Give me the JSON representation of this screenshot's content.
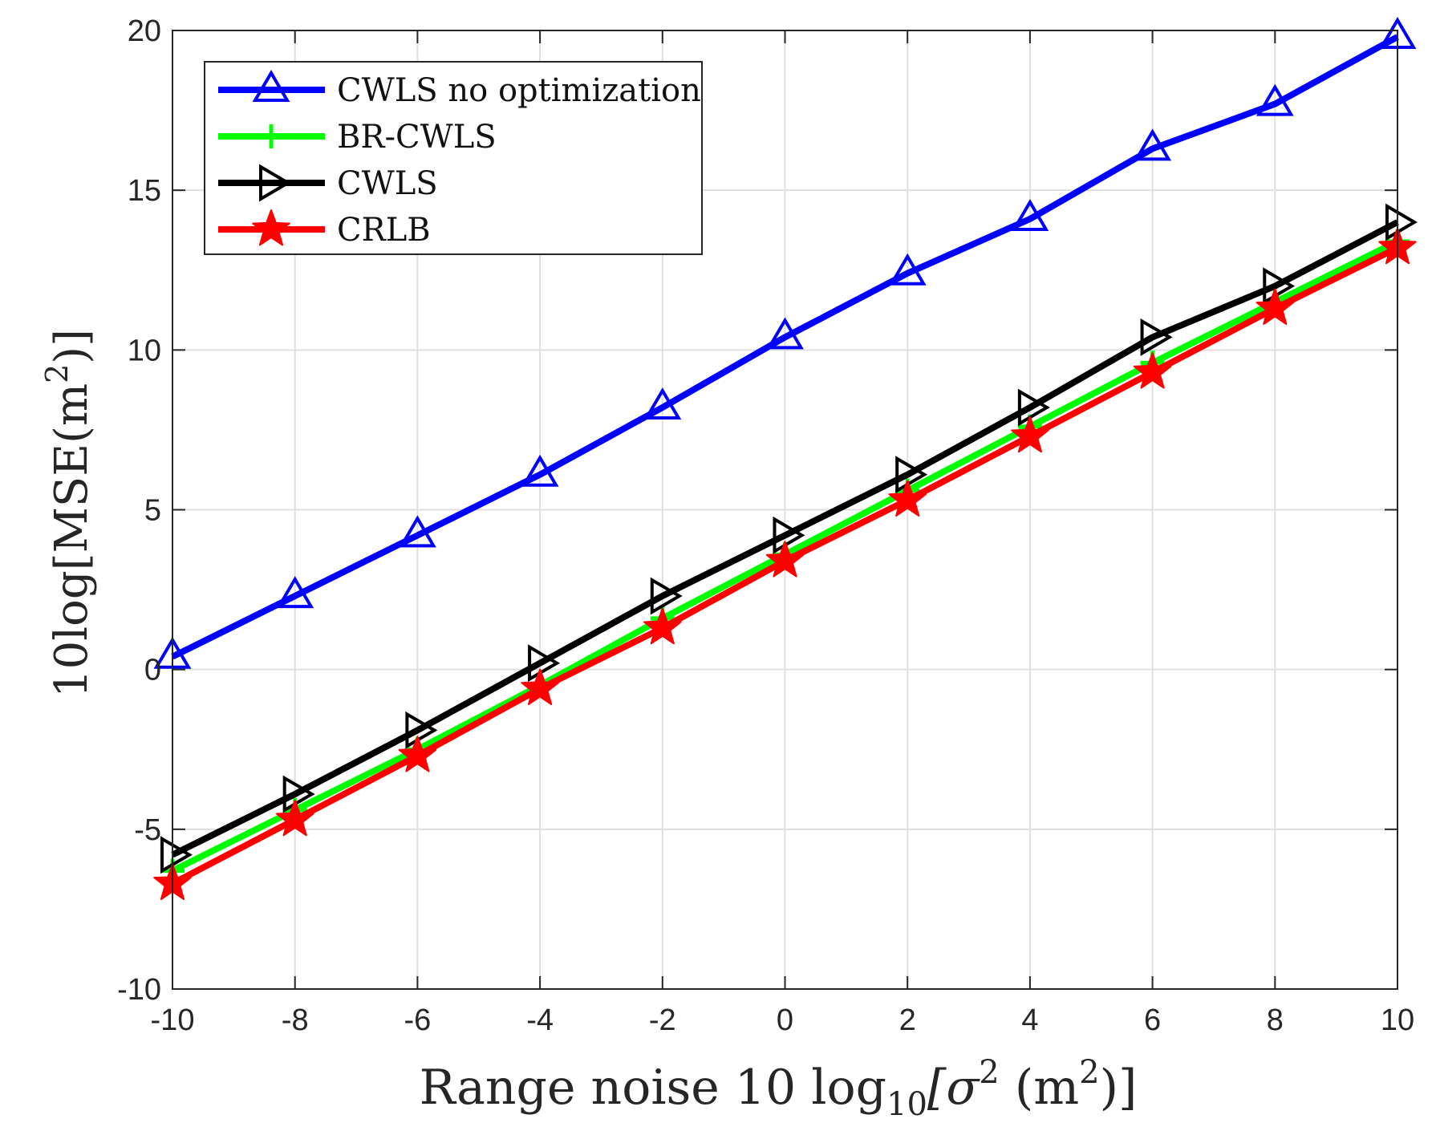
{
  "chart_data": {
    "type": "line",
    "title": "",
    "xlabel": {
      "prefix": "Range noise 10 log",
      "sub": "10",
      "mid": "[σ",
      "sup1": "2",
      "mid2": " (m",
      "sup2": "2",
      "suffix": ")]"
    },
    "ylabel": {
      "prefix": "10log[MSE(m",
      "sup": "2",
      "suffix": ")]"
    },
    "x": [
      -10,
      -8,
      -6,
      -4,
      -2,
      0,
      2,
      4,
      6,
      8,
      10
    ],
    "xlim": [
      -10,
      10
    ],
    "ylim": [
      -10,
      20
    ],
    "xticks": [
      -10,
      -8,
      -6,
      -4,
      -2,
      0,
      2,
      4,
      6,
      8,
      10
    ],
    "yticks": [
      -10,
      -5,
      0,
      5,
      10,
      15,
      20
    ],
    "grid": true,
    "legend_position": "top-left",
    "series": [
      {
        "name": "CWLS no optimization",
        "color": "#0000ff",
        "marker": "triangle-up",
        "values": [
          0.4,
          2.3,
          4.2,
          6.1,
          8.2,
          10.4,
          12.4,
          14.1,
          16.3,
          17.7,
          19.8
        ]
      },
      {
        "name": "BR-CWLS",
        "color": "#00ff00",
        "marker": "plus",
        "values": [
          -6.3,
          -4.4,
          -2.5,
          -0.5,
          1.6,
          3.6,
          5.6,
          7.6,
          9.6,
          11.5,
          13.4
        ]
      },
      {
        "name": "CWLS",
        "color": "#000000",
        "marker": "triangle-right",
        "values": [
          -5.8,
          -3.9,
          -1.9,
          0.2,
          2.3,
          4.2,
          6.1,
          8.2,
          10.4,
          12.0,
          14.0
        ]
      },
      {
        "name": "CRLB",
        "color": "#ff0000",
        "marker": "star",
        "values": [
          -6.7,
          -4.7,
          -2.7,
          -0.6,
          1.3,
          3.4,
          5.3,
          7.3,
          9.3,
          11.3,
          13.2
        ]
      }
    ]
  }
}
